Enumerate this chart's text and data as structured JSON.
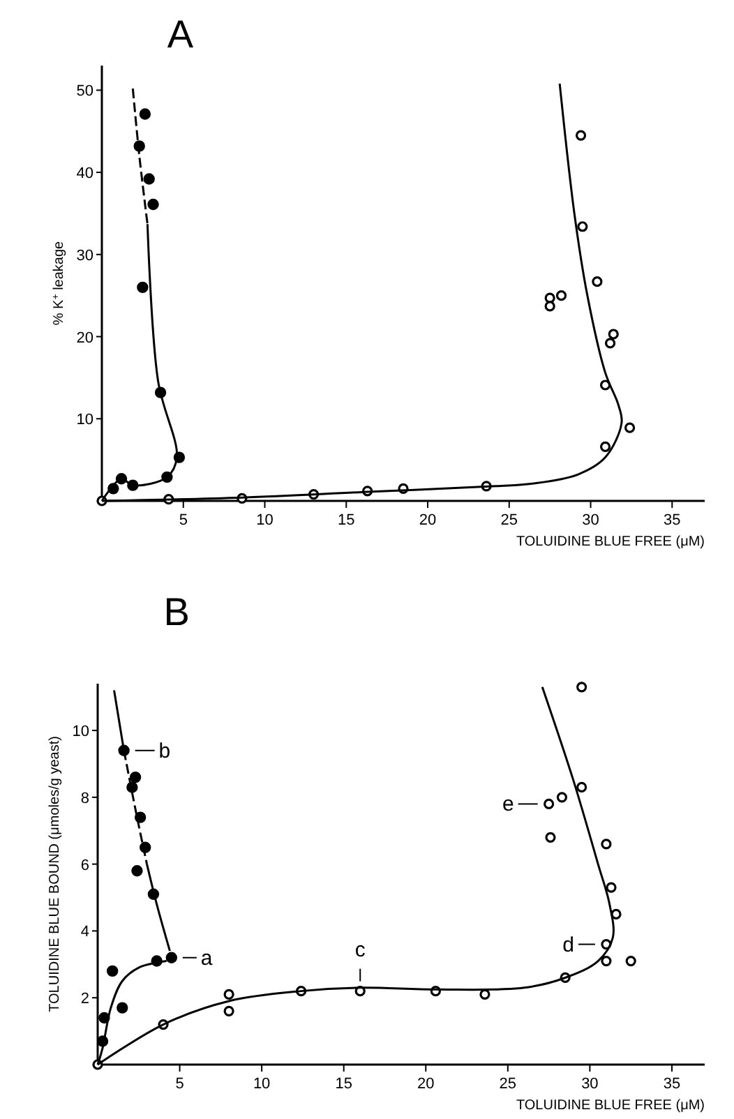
{
  "chart_data": [
    {
      "type": "scatter",
      "title": "A",
      "xlabel": "TOLUIDINE BLUE FREE (μM)",
      "ylabel": "% K$^{+}$ leakage",
      "xlim": [
        0,
        37
      ],
      "ylim": [
        0,
        53
      ],
      "xticks": [
        5,
        10,
        15,
        20,
        25,
        30,
        35
      ],
      "yticks": [
        10,
        20,
        30,
        40,
        50
      ],
      "grid": false,
      "series": [
        {
          "marker": "circle",
          "color": "#000000",
          "x": [
            2.65,
            2.3,
            2.9,
            3.15,
            2.5,
            3.6,
            4.75,
            4.0,
            1.9,
            1.2,
            0.7
          ],
          "values": [
            47.1,
            43.2,
            39.2,
            36.1,
            26,
            13.2,
            5.3,
            2.9,
            1.9,
            2.7,
            1.5
          ]
        },
        {
          "marker": "circle-open",
          "color": "#000000",
          "x": [
            0,
            4.1,
            8.6,
            13.0,
            16.3,
            18.5,
            23.6,
            29.4,
            29.5,
            30.4,
            27.5,
            27.5,
            28.2,
            31.4,
            31.2,
            30.9,
            32.4,
            30.9
          ],
          "values": [
            0,
            0.2,
            0.3,
            0.8,
            1.2,
            1.5,
            1.8,
            44.5,
            33.4,
            26.7,
            24.7,
            23.7,
            25.0,
            20.3,
            19.2,
            14.1,
            8.9,
            6.6
          ]
        },
        {
          "type": "line",
          "line_style": "dashed",
          "color": "#000000",
          "x": [
            1.9,
            2.3,
            2.8
          ],
          "values": [
            50.2,
            42,
            33.7
          ]
        },
        {
          "type": "line",
          "line_style": "solid",
          "color": "#000000",
          "x": [
            2.8,
            3.45,
            4.6,
            4.0,
            1.9,
            1.2,
            0
          ],
          "values": [
            33.7,
            14.6,
            5.3,
            2.9,
            1.9,
            2.7,
            0
          ]
        },
        {
          "type": "line",
          "line_style": "solid",
          "color": "#000000",
          "x": [
            0,
            8.6,
            16.3,
            24.2,
            26.4,
            29.2,
            30.9,
            31.9,
            31.7,
            30.9,
            29.8,
            29.0,
            28.1
          ],
          "values": [
            0,
            0.4,
            1.1,
            1.8,
            2.1,
            3.2,
            5.3,
            9.5,
            11.7,
            15.6,
            25,
            35,
            50.8
          ]
        }
      ]
    },
    {
      "type": "scatter",
      "title": "B",
      "xlabel": "TOLUIDINE BLUE FREE (μM)",
      "ylabel": "TOLUIDINE BLUE BOUND (μmoles/g yeast)",
      "xlim": [
        0,
        37
      ],
      "ylim": [
        0,
        11.4
      ],
      "xticks": [
        5,
        10,
        15,
        20,
        25,
        30,
        35
      ],
      "yticks": [
        2,
        4,
        6,
        8,
        10
      ],
      "grid": false,
      "annotations": [
        {
          "text": "a",
          "x": 4.5,
          "y": 3.2
        },
        {
          "text": "b",
          "x": 1.6,
          "y": 9.4
        },
        {
          "text": "c",
          "x": 16.0,
          "y": 2.2
        },
        {
          "text": "d",
          "x": 31.0,
          "y": 3.6
        },
        {
          "text": "e",
          "x": 27.5,
          "y": 7.8
        }
      ],
      "series": [
        {
          "marker": "circle",
          "color": "#000000",
          "x": [
            1.6,
            2.3,
            2.1,
            2.6,
            2.9,
            2.4,
            3.4,
            3.6,
            4.5,
            0.9,
            1.5,
            0.4,
            0.3
          ],
          "values": [
            9.4,
            8.6,
            8.3,
            7.4,
            6.5,
            5.8,
            5.1,
            3.1,
            3.2,
            2.8,
            1.7,
            1.4,
            0.7
          ]
        },
        {
          "marker": "circle-open",
          "color": "#000000",
          "x": [
            0,
            4.0,
            8.0,
            8.0,
            12.4,
            16.0,
            20.6,
            23.6,
            28.5,
            31.0,
            32.5,
            31.0,
            31.6,
            31.3,
            31.0,
            29.5,
            28.3,
            27.5,
            27.6,
            29.5
          ],
          "values": [
            0,
            1.2,
            2.1,
            1.6,
            2.2,
            2.2,
            2.2,
            2.1,
            2.6,
            3.1,
            3.1,
            3.6,
            4.5,
            5.3,
            6.6,
            8.3,
            8.0,
            7.8,
            6.8,
            11.3
          ]
        },
        {
          "type": "line",
          "line_style": "dashed",
          "color": "#000000",
          "x": [
            1.6,
            2.4,
            3.0
          ],
          "values": [
            9.4,
            7.4,
            6.0
          ]
        },
        {
          "type": "line",
          "line_style": "solid",
          "color": "#000000",
          "x": [
            1.0,
            1.6
          ],
          "values": [
            11.2,
            9.4
          ]
        },
        {
          "type": "line",
          "line_style": "solid",
          "color": "#000000",
          "x": [
            3.0,
            3.6,
            4.4
          ],
          "values": [
            6.0,
            4.8,
            3.4
          ]
        },
        {
          "type": "line",
          "line_style": "solid",
          "color": "#000000",
          "x": [
            0,
            0.3,
            0.8,
            1.5,
            2.5,
            4.2
          ],
          "values": [
            0,
            0.5,
            1.7,
            2.5,
            2.9,
            3.1
          ]
        },
        {
          "type": "line",
          "line_style": "solid",
          "color": "#000000",
          "x": [
            0,
            4.0,
            8.0,
            12.4,
            16.0,
            20.6,
            26.0,
            28.5,
            30.5,
            31.4,
            31.2,
            30.5,
            29.0,
            27.1
          ],
          "values": [
            0,
            1.2,
            1.9,
            2.2,
            2.3,
            2.25,
            2.3,
            2.6,
            3.1,
            3.8,
            4.8,
            6.0,
            8.5,
            11.3
          ]
        }
      ]
    }
  ]
}
